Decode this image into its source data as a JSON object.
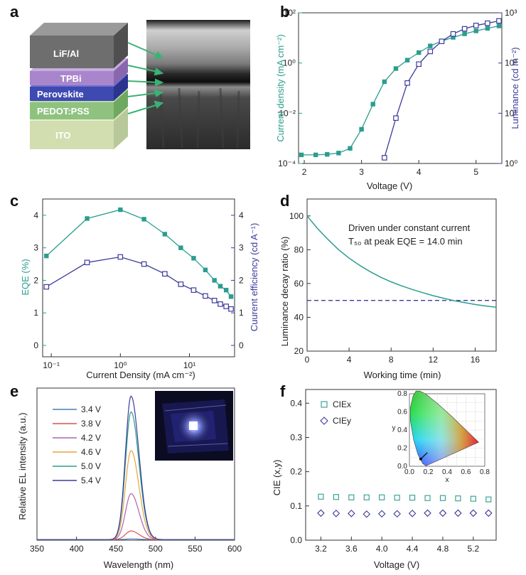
{
  "figure": {
    "panel_labels": [
      "a",
      "b",
      "c",
      "d",
      "e",
      "f"
    ],
    "panel_a": {
      "layers": [
        "LiF/Al",
        "TPBi",
        "Perovskite",
        "PEDOT:PSS",
        "ITO"
      ],
      "colors": {
        "LiF/Al": "#6e6e6e",
        "TPBi": "#a986cc",
        "Perovskite": "#3f49b2",
        "PEDOT:PSS": "#8fc27f",
        "ITO": "#d2deb0"
      }
    }
  },
  "chart_data": [
    {
      "panel": "b",
      "type": "line",
      "xlabel": "Voltage (V)",
      "ylabel_left": "Current density (mA cm⁻²)",
      "ylabel_right": "Luminance (cd m⁻²)",
      "xlim": [
        1.9,
        5.45
      ],
      "xticks": [
        "2",
        "3",
        "4",
        "5"
      ],
      "ylim_left": [
        0.0001,
        100
      ],
      "yscale_left": "log",
      "yticks_left": [
        "10⁻⁴",
        "10⁻²",
        "10⁰",
        "10²"
      ],
      "ylim_right": [
        1,
        1000
      ],
      "yscale_right": "log",
      "yticks_right": [
        "10⁰",
        "10¹",
        "10²",
        "10³"
      ],
      "series": [
        {
          "axis": "left",
          "color": "#2a9d8f",
          "marker": "filled-square",
          "x": [
            1.95,
            2.2,
            2.4,
            2.6,
            2.8,
            3.0,
            3.2,
            3.4,
            3.6,
            3.8,
            4.0,
            4.2,
            4.4,
            4.6,
            4.8,
            5.0,
            5.2,
            5.4
          ],
          "y": [
            0.00022,
            0.00022,
            0.00023,
            0.00026,
            0.0004,
            0.0023,
            0.023,
            0.18,
            0.6,
            1.3,
            2.6,
            4.8,
            7.5,
            10.5,
            14.5,
            19,
            24,
            30
          ]
        },
        {
          "axis": "right",
          "color": "#3b3b9a",
          "marker": "open-square",
          "x": [
            3.4,
            3.6,
            3.8,
            4.0,
            4.2,
            4.4,
            4.6,
            4.8,
            5.0,
            5.2,
            5.4
          ],
          "y": [
            1.3,
            8,
            40,
            95,
            170,
            270,
            380,
            480,
            560,
            620,
            690
          ]
        }
      ]
    },
    {
      "panel": "c",
      "type": "line",
      "xlabel": "Current Density (mA cm⁻²)",
      "ylabel_left": "EQE (%)",
      "ylabel_right": "Cuurent efficiency (cd A⁻¹)",
      "xscale": "log",
      "xlim": [
        0.075,
        45
      ],
      "xticks": [
        "10⁻¹",
        "10⁰",
        "10¹"
      ],
      "ylim_left": [
        -0.35,
        4.5
      ],
      "yticks_left": [
        "0",
        "1",
        "2",
        "3",
        "4"
      ],
      "ylim_right": [
        -0.35,
        4.5
      ],
      "yticks_right": [
        "0",
        "1",
        "2",
        "3",
        "4"
      ],
      "series": [
        {
          "name": "EQE",
          "axis": "left",
          "color": "#2a9d8f",
          "marker": "filled-square",
          "x": [
            0.085,
            0.33,
            1.0,
            2.2,
            4.4,
            7.5,
            11.5,
            17,
            23,
            28,
            34,
            40
          ],
          "y": [
            2.75,
            3.9,
            4.17,
            3.88,
            3.42,
            3.0,
            2.68,
            2.32,
            2.0,
            1.82,
            1.7,
            1.5
          ]
        },
        {
          "name": "CE",
          "axis": "right",
          "color": "#3b3b9a",
          "marker": "open-square",
          "x": [
            0.085,
            0.33,
            1.0,
            2.2,
            4.4,
            7.5,
            11.5,
            17,
            23,
            28,
            34,
            40
          ],
          "y": [
            1.8,
            2.55,
            2.72,
            2.5,
            2.2,
            1.88,
            1.7,
            1.52,
            1.38,
            1.27,
            1.2,
            1.12
          ]
        }
      ]
    },
    {
      "panel": "d",
      "type": "line",
      "xlabel": "Working time (min)",
      "ylabel": "Luminance decay ratio (%)",
      "xlim": [
        0,
        18
      ],
      "ylim": [
        20,
        110
      ],
      "xticks": [
        "0",
        "4",
        "8",
        "12",
        "16"
      ],
      "yticks": [
        "20",
        "40",
        "60",
        "80",
        "100"
      ],
      "annotation": [
        "Driven under constant current",
        "T₅₀ at peak EQE = 14.0 min"
      ],
      "reference_line_y": 50,
      "series": [
        {
          "color": "#2a9d8f",
          "x": [
            0,
            1,
            2,
            3,
            4,
            5,
            6,
            7,
            8,
            9,
            10,
            11,
            12,
            13,
            14,
            15,
            16,
            17,
            18
          ],
          "y": [
            100,
            92.5,
            86,
            80,
            75,
            70.8,
            67,
            63.8,
            61,
            58.6,
            56.5,
            54.6,
            52.8,
            51.3,
            49.8,
            48.7,
            47.6,
            46.7,
            46
          ]
        }
      ]
    },
    {
      "panel": "e",
      "type": "line",
      "xlabel": "Wavelength (nm)",
      "ylabel": "Relative EL intensity (a.u.)",
      "xlim": [
        350,
        600
      ],
      "xticks": [
        "350",
        "400",
        "450",
        "500",
        "550",
        "600"
      ],
      "peak_nm": 469,
      "legend": [
        "3.4 V",
        "3.8 V",
        "4.2 V",
        "4.6 V",
        "5.0 V",
        "5.4 V"
      ],
      "series": [
        {
          "name": "3.4 V",
          "color": "#4a7db8",
          "peak": 0.005
        },
        {
          "name": "3.8 V",
          "color": "#d9534f",
          "peak": 0.06
        },
        {
          "name": "4.2 V",
          "color": "#b060b0",
          "peak": 0.32
        },
        {
          "name": "4.6 V",
          "color": "#e8a33a",
          "peak": 0.62
        },
        {
          "name": "5.0 V",
          "color": "#2a9d8f",
          "peak": 0.89
        },
        {
          "name": "5.4 V",
          "color": "#3b3b9a",
          "peak": 1.0
        }
      ]
    },
    {
      "panel": "f",
      "type": "scatter",
      "xlabel": "Voltage (V)",
      "ylabel": "CIE (x,y)",
      "xlim": [
        3.0,
        5.5
      ],
      "ylim": [
        0,
        0.44
      ],
      "xticks": [
        "3.2",
        "3.6",
        "4.0",
        "4.4",
        "4.8",
        "5.2"
      ],
      "yticks": [
        "0.0",
        "0.1",
        "0.2",
        "0.3",
        "0.4"
      ],
      "series": [
        {
          "name": "CIEx",
          "color": "#2a9d8f",
          "marker": "open-square",
          "x": [
            3.2,
            3.4,
            3.6,
            3.8,
            4.0,
            4.2,
            4.4,
            4.6,
            4.8,
            5.0,
            5.2,
            5.4
          ],
          "y": [
            0.127,
            0.126,
            0.125,
            0.125,
            0.125,
            0.124,
            0.124,
            0.123,
            0.123,
            0.122,
            0.121,
            0.119
          ]
        },
        {
          "name": "CIEy",
          "color": "#3b3b9a",
          "marker": "open-diamond",
          "x": [
            3.2,
            3.4,
            3.6,
            3.8,
            4.0,
            4.2,
            4.4,
            4.6,
            4.8,
            5.0,
            5.2,
            5.4
          ],
          "y": [
            0.079,
            0.078,
            0.078,
            0.076,
            0.077,
            0.077,
            0.078,
            0.079,
            0.079,
            0.079,
            0.079,
            0.079
          ]
        }
      ],
      "inset": {
        "xlabel": "x",
        "ylabel": "y",
        "xticks": [
          "0.0",
          "0.2",
          "0.4",
          "0.6",
          "0.8"
        ],
        "yticks": [
          "0.0",
          "0.2",
          "0.4",
          "0.6",
          "0.8"
        ],
        "marker_point": [
          0.12,
          0.08
        ]
      }
    }
  ]
}
